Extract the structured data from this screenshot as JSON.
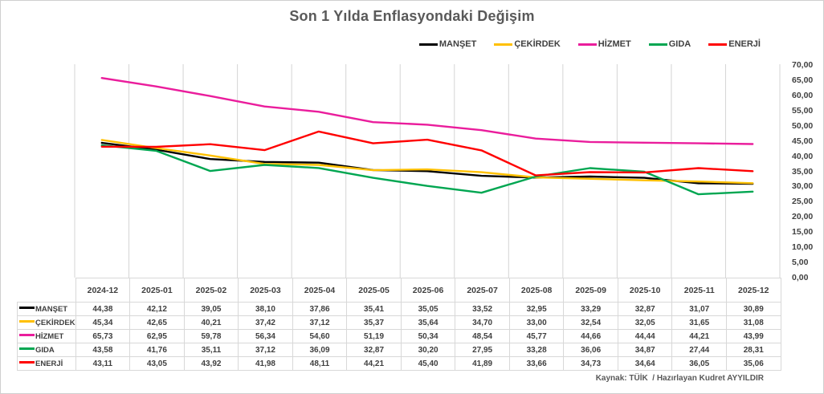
{
  "title": "Son 1 Yılda Enflasyondaki Değişim",
  "source_note": "Kaynak: TÜİK  / Hazırlayan Kudret AYYILDIR",
  "chart_data": {
    "type": "line",
    "title": "Son 1 Yılda Enflasyondaki Değişim",
    "categories": [
      "2024-12",
      "2025-01",
      "2025-02",
      "2025-03",
      "2025-04",
      "2025-05",
      "2025-06",
      "2025-07",
      "2025-08",
      "2025-09",
      "2025-10",
      "2025-11",
      "2025-12"
    ],
    "series": [
      {
        "name": "MANŞET",
        "color": "#000000",
        "values": [
          44.38,
          42.12,
          39.05,
          38.1,
          37.86,
          35.41,
          35.05,
          33.52,
          32.95,
          33.29,
          32.87,
          31.07,
          30.89
        ]
      },
      {
        "name": "ÇEKİRDEK",
        "color": "#FFC000",
        "values": [
          45.34,
          42.65,
          40.21,
          37.42,
          37.12,
          35.37,
          35.64,
          34.7,
          33.0,
          32.54,
          32.05,
          31.65,
          31.08
        ]
      },
      {
        "name": "HİZMET",
        "color": "#EA1D9C",
        "values": [
          65.73,
          62.95,
          59.78,
          56.34,
          54.6,
          51.19,
          50.34,
          48.54,
          45.77,
          44.66,
          44.44,
          44.21,
          43.99
        ]
      },
      {
        "name": "GIDA",
        "color": "#00A651",
        "values": [
          43.58,
          41.76,
          35.11,
          37.12,
          36.09,
          32.87,
          30.2,
          27.95,
          33.28,
          36.06,
          34.87,
          27.44,
          28.31
        ]
      },
      {
        "name": "ENERJİ",
        "color": "#FF0000",
        "values": [
          43.11,
          43.05,
          43.92,
          41.98,
          48.11,
          44.21,
          45.4,
          41.89,
          33.66,
          34.73,
          34.64,
          36.05,
          35.06
        ]
      }
    ],
    "ylim": [
      0,
      70
    ],
    "ytick_step": 5,
    "ytick_labels": [
      "70,00",
      "65,00",
      "60,00",
      "55,00",
      "50,00",
      "45,00",
      "40,00",
      "35,00",
      "30,00",
      "25,00",
      "20,00",
      "15,00",
      "10,00",
      "5,00",
      "0,00"
    ],
    "y_axis_side": "right",
    "xlabel": "",
    "ylabel": "",
    "grid": "vertical",
    "gridline_color": "#d4d4d4",
    "legend_position": "top-right",
    "decimal_separator": ",",
    "data_table_shown": true
  }
}
